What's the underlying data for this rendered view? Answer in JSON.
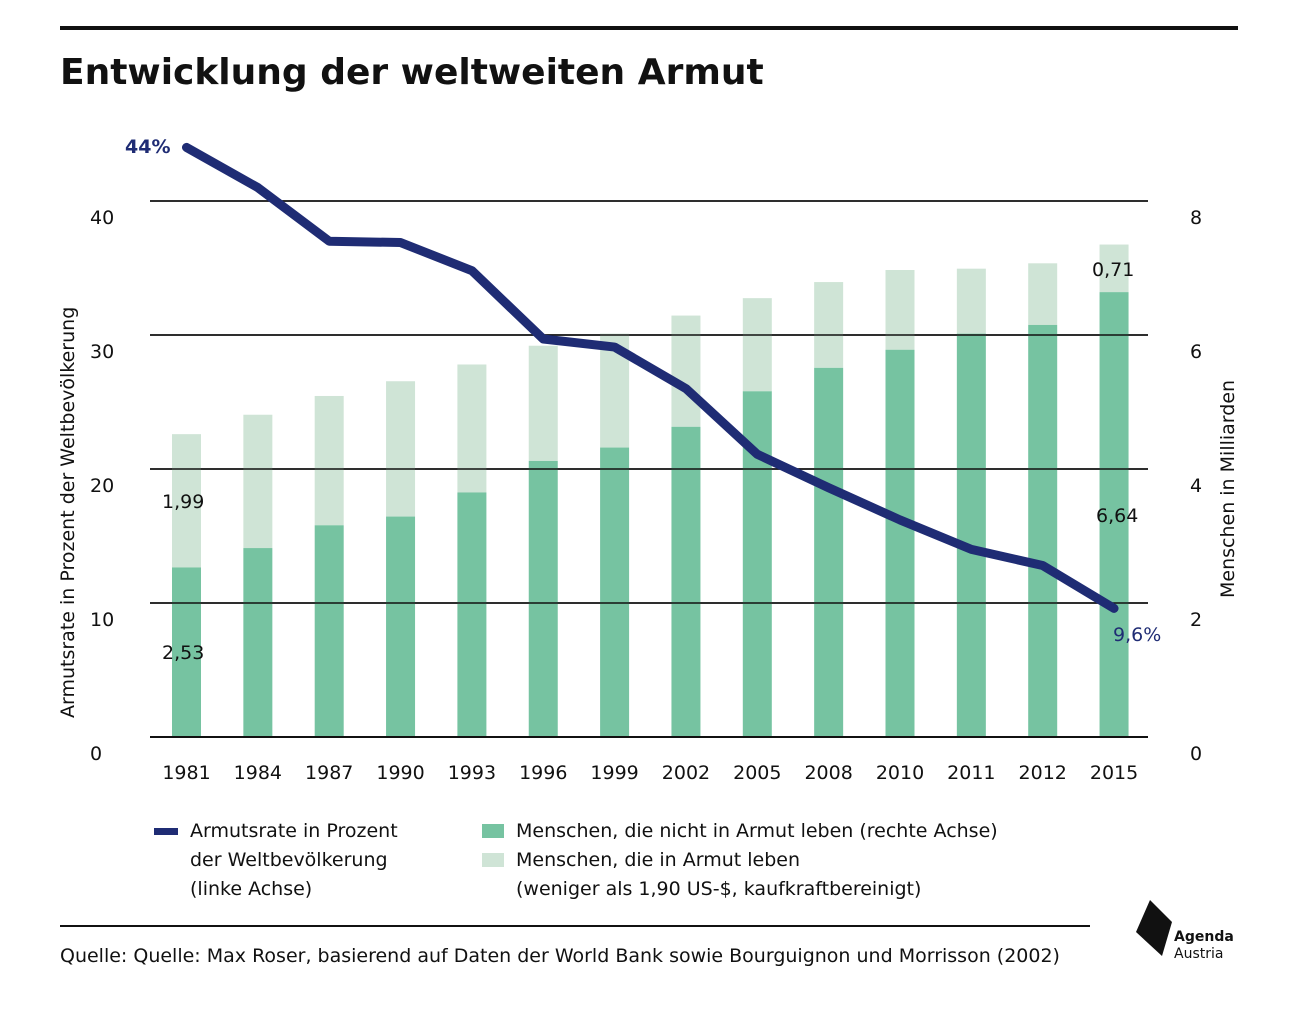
{
  "title": "Entwicklung der weltweiten Armut",
  "chart_data": {
    "type": "bar",
    "categories": [
      "1981",
      "1984",
      "1987",
      "1990",
      "1993",
      "1996",
      "1999",
      "2002",
      "2005",
      "2008",
      "2010",
      "2011",
      "2012",
      "2015"
    ],
    "stacked": true,
    "series": [
      {
        "name": "Menschen, die nicht in Armut leben (rechte Achse)",
        "axis": "right",
        "color": "#76c3a1",
        "values": [
          2.53,
          2.82,
          3.16,
          3.29,
          3.65,
          4.12,
          4.32,
          4.63,
          5.16,
          5.51,
          5.78,
          6.02,
          6.15,
          6.64
        ]
      },
      {
        "name": "Menschen, die in Armut leben",
        "axis": "right",
        "color": "#cfe4d6",
        "values": [
          1.99,
          1.99,
          1.93,
          2.02,
          1.91,
          1.72,
          1.7,
          1.66,
          1.39,
          1.28,
          1.19,
          0.97,
          0.92,
          0.71
        ]
      },
      {
        "name": "Armutsrate in Prozent der Weltbevölkerung",
        "axis": "left",
        "type": "line",
        "color": "#1f2c74",
        "values": [
          44,
          41,
          37,
          36.9,
          34.8,
          29.7,
          29.1,
          26,
          21.1,
          18.6,
          16.2,
          14,
          12.8,
          9.6
        ]
      }
    ],
    "y_left": {
      "label": "Armutsrate in Prozent der Weltbevölkerung",
      "ticks": [
        "0",
        "10",
        "20",
        "30",
        "40"
      ],
      "range": [
        0,
        45
      ]
    },
    "y_right": {
      "label": "Menschen in Milliarden",
      "ticks": [
        "0",
        "2",
        "4",
        "6",
        "8"
      ],
      "range": [
        0,
        9
      ]
    },
    "annotations": {
      "line_start": "44%",
      "line_end": "9,6%",
      "bar_first_green": "2,53",
      "bar_first_light": "1,99",
      "bar_last_green": "6,64",
      "bar_last_light": "0,71"
    },
    "legend": {
      "line_label_lines": [
        "Armutsrate in Prozent",
        "der Weltbevölkerung",
        "(linke Achse)"
      ],
      "green_label": "Menschen, die nicht in Armut leben (rechte Achse)",
      "light_label_lines": [
        "Menschen, die in Armut leben",
        "(weniger als 1,90 US-$, kaufkraftbereinigt)"
      ]
    },
    "grid": true
  },
  "source": "Quelle: Quelle: Max Roser, basierend auf Daten der World Bank sowie Bourguignon und Morrisson (2002)",
  "logo": {
    "line1": "Agenda",
    "line2": "Austria"
  }
}
